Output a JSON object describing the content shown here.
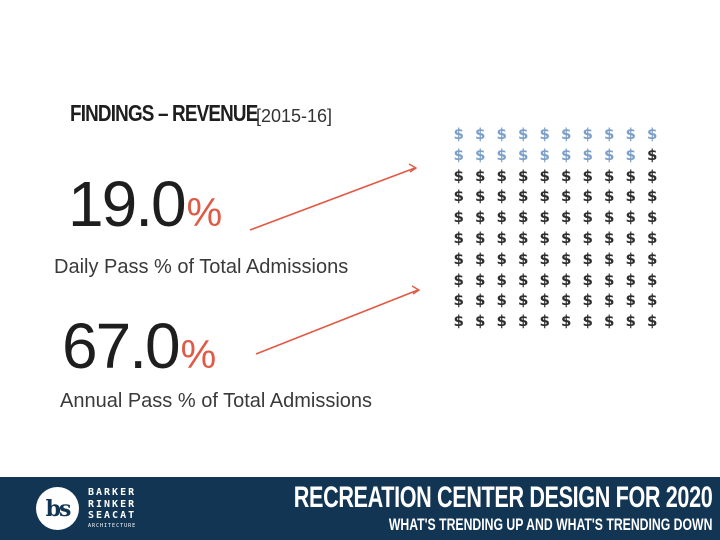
{
  "header": {
    "title": "FINDINGS – REVENUE",
    "year": "[2015-16]"
  },
  "stats": [
    {
      "value": "19.0",
      "unit": "%",
      "label": "Daily Pass % of Total Admissions"
    },
    {
      "value": "67.0",
      "unit": "%",
      "label": "Annual Pass % of Total Admissions"
    }
  ],
  "dollar_grid": {
    "symbol": "$",
    "rows": 10,
    "cols": 10,
    "highlighted_count": 19,
    "highlight_color": "#7b9fc8",
    "default_color": "#2e2e2e"
  },
  "colors": {
    "accent": "#e05a45",
    "footer_bg": "#123554"
  },
  "footer": {
    "logo_monogram": "bs",
    "logo_lines": [
      "BARKER",
      "RINKER",
      "SEACAT"
    ],
    "logo_subtitle": "ARCHITECTURE",
    "title": "RECREATION CENTER DESIGN FOR 2020",
    "subtitle": "WHAT'S TRENDING UP AND WHAT'S TRENDING DOWN"
  }
}
